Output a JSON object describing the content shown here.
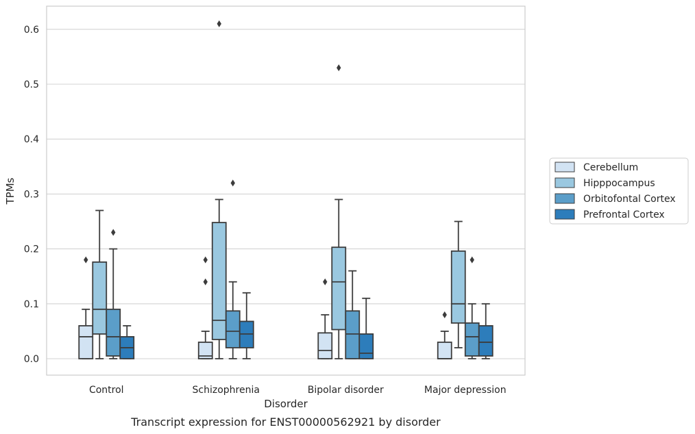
{
  "chart_data": {
    "type": "box",
    "xlabel": "Disorder",
    "ylabel": "TPMs",
    "caption": "Transcript expression for ENST00000562921 by disorder",
    "ylim": [
      -0.03,
      0.64
    ],
    "yticks": [
      "0.0",
      "0.1",
      "0.2",
      "0.3",
      "0.4",
      "0.5",
      "0.6"
    ],
    "grid": "horizontal",
    "legend_position": "right",
    "categories": [
      "Control",
      "Schizophrenia",
      "Bipolar disorder",
      "Major depression"
    ],
    "series": [
      {
        "name": "Cerebellum",
        "color": "#d2e3f3",
        "boxes": [
          {
            "whisker_low": 0.0,
            "q1": 0.0,
            "median": 0.04,
            "q3": 0.06,
            "whisker_high": 0.09,
            "outliers": [
              0.18
            ]
          },
          {
            "whisker_low": 0.0,
            "q1": 0.0,
            "median": 0.005,
            "q3": 0.03,
            "whisker_high": 0.05,
            "outliers": [
              0.14,
              0.18
            ]
          },
          {
            "whisker_low": 0.0,
            "q1": 0.0,
            "median": 0.015,
            "q3": 0.047,
            "whisker_high": 0.08,
            "outliers": [
              0.14
            ]
          },
          {
            "whisker_low": 0.0,
            "q1": 0.0,
            "median": 0.0,
            "q3": 0.03,
            "whisker_high": 0.05,
            "outliers": [
              0.08
            ]
          }
        ]
      },
      {
        "name": "Hipppocampus",
        "color": "#9ac8e0",
        "boxes": [
          {
            "whisker_low": 0.0,
            "q1": 0.045,
            "median": 0.09,
            "q3": 0.176,
            "whisker_high": 0.27,
            "outliers": []
          },
          {
            "whisker_low": 0.0,
            "q1": 0.035,
            "median": 0.07,
            "q3": 0.248,
            "whisker_high": 0.29,
            "outliers": [
              0.61
            ]
          },
          {
            "whisker_low": 0.0,
            "q1": 0.053,
            "median": 0.14,
            "q3": 0.203,
            "whisker_high": 0.29,
            "outliers": [
              0.53
            ]
          },
          {
            "whisker_low": 0.02,
            "q1": 0.065,
            "median": 0.1,
            "q3": 0.196,
            "whisker_high": 0.25,
            "outliers": []
          }
        ]
      },
      {
        "name": "Orbitofontal Cortex",
        "color": "#5b9ec9",
        "boxes": [
          {
            "whisker_low": 0.0,
            "q1": 0.005,
            "median": 0.04,
            "q3": 0.09,
            "whisker_high": 0.2,
            "outliers": [
              0.23
            ]
          },
          {
            "whisker_low": 0.0,
            "q1": 0.02,
            "median": 0.05,
            "q3": 0.087,
            "whisker_high": 0.14,
            "outliers": [
              0.32
            ]
          },
          {
            "whisker_low": 0.0,
            "q1": 0.0,
            "median": 0.045,
            "q3": 0.087,
            "whisker_high": 0.16,
            "outliers": []
          },
          {
            "whisker_low": 0.0,
            "q1": 0.005,
            "median": 0.04,
            "q3": 0.065,
            "whisker_high": 0.1,
            "outliers": [
              0.18
            ]
          }
        ]
      },
      {
        "name": "Prefrontal Cortex",
        "color": "#2d7dbb",
        "boxes": [
          {
            "whisker_low": 0.0,
            "q1": 0.0,
            "median": 0.02,
            "q3": 0.04,
            "whisker_high": 0.06,
            "outliers": []
          },
          {
            "whisker_low": 0.0,
            "q1": 0.02,
            "median": 0.045,
            "q3": 0.068,
            "whisker_high": 0.12,
            "outliers": []
          },
          {
            "whisker_low": 0.0,
            "q1": 0.0,
            "median": 0.01,
            "q3": 0.045,
            "whisker_high": 0.11,
            "outliers": []
          },
          {
            "whisker_low": 0.0,
            "q1": 0.005,
            "median": 0.03,
            "q3": 0.06,
            "whisker_high": 0.1,
            "outliers": []
          }
        ]
      }
    ]
  }
}
